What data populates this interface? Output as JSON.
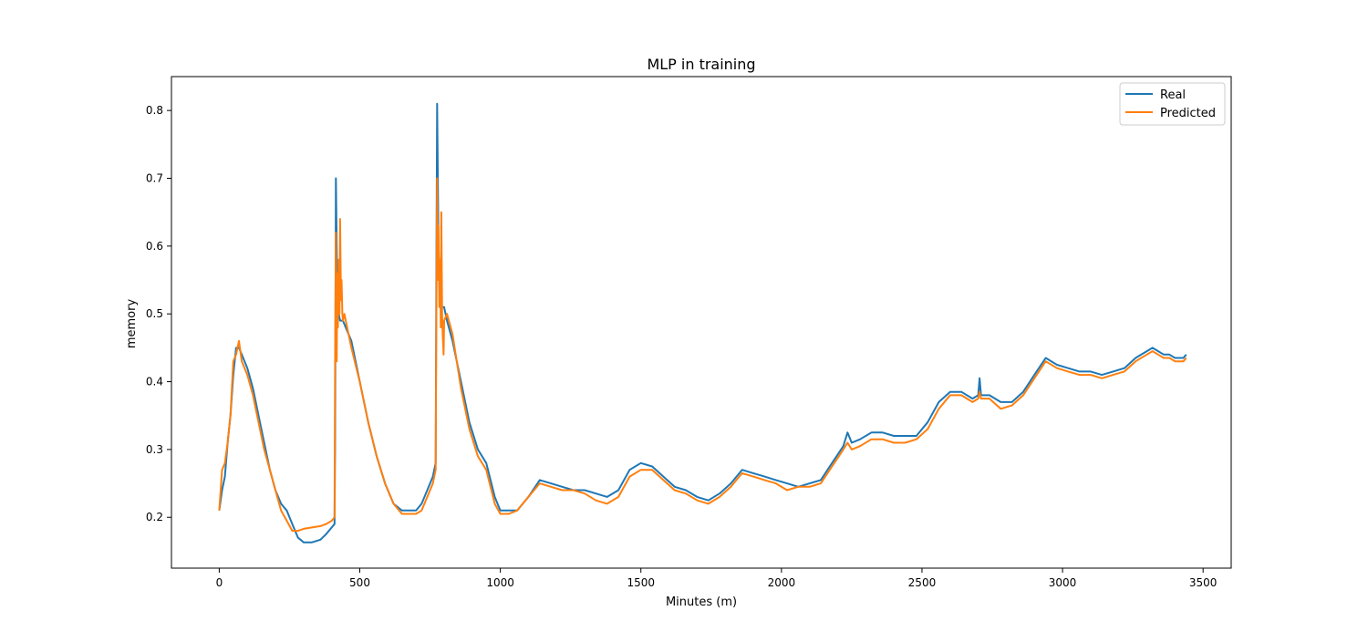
{
  "chart_data": {
    "type": "line",
    "title": "MLP in training",
    "xlabel": "Minutes (m)",
    "ylabel": "memory",
    "xlim": [
      -170,
      3600
    ],
    "ylim": [
      0.125,
      0.85
    ],
    "xticks": [
      0,
      500,
      1000,
      1500,
      2000,
      2500,
      3000,
      3500
    ],
    "yticks": [
      0.2,
      0.3,
      0.4,
      0.5,
      0.6,
      0.7,
      0.8
    ],
    "xtick_labels": [
      "0",
      "500",
      "1000",
      "1500",
      "2000",
      "2500",
      "3000",
      "3500"
    ],
    "ytick_labels": [
      "0.2",
      "0.3",
      "0.4",
      "0.5",
      "0.6",
      "0.7",
      "0.8"
    ],
    "grid": false,
    "legend": "top-right",
    "series": [
      {
        "name": "Real",
        "color": "#1f77b4",
        "x": [
          0,
          10,
          20,
          30,
          40,
          50,
          60,
          70,
          80,
          100,
          120,
          140,
          160,
          180,
          200,
          220,
          240,
          260,
          280,
          300,
          330,
          360,
          380,
          400,
          410,
          412,
          415,
          420,
          425,
          430,
          440,
          450,
          470,
          500,
          530,
          560,
          590,
          620,
          650,
          680,
          700,
          720,
          740,
          760,
          770,
          772,
          775,
          780,
          785,
          790,
          800,
          810,
          830,
          860,
          890,
          920,
          950,
          980,
          1000,
          1030,
          1060,
          1100,
          1140,
          1180,
          1220,
          1260,
          1300,
          1340,
          1380,
          1420,
          1460,
          1500,
          1540,
          1580,
          1620,
          1660,
          1700,
          1740,
          1780,
          1820,
          1860,
          1900,
          1940,
          1980,
          2020,
          2060,
          2100,
          2140,
          2180,
          2220,
          2235,
          2250,
          2280,
          2320,
          2360,
          2400,
          2440,
          2480,
          2520,
          2560,
          2600,
          2640,
          2680,
          2700,
          2705,
          2710,
          2740,
          2780,
          2820,
          2860,
          2900,
          2940,
          2980,
          3020,
          3060,
          3100,
          3140,
          3180,
          3220,
          3260,
          3300,
          3320,
          3340,
          3360,
          3380,
          3400,
          3430,
          3440
        ],
        "values": [
          0.21,
          0.24,
          0.26,
          0.31,
          0.35,
          0.41,
          0.45,
          0.45,
          0.44,
          0.42,
          0.39,
          0.35,
          0.31,
          0.27,
          0.24,
          0.22,
          0.21,
          0.19,
          0.17,
          0.163,
          0.163,
          0.167,
          0.175,
          0.185,
          0.19,
          0.3,
          0.7,
          0.52,
          0.5,
          0.49,
          0.49,
          0.48,
          0.46,
          0.4,
          0.34,
          0.29,
          0.25,
          0.22,
          0.21,
          0.21,
          0.21,
          0.22,
          0.24,
          0.26,
          0.28,
          0.5,
          0.81,
          0.6,
          0.52,
          0.51,
          0.51,
          0.49,
          0.46,
          0.4,
          0.34,
          0.3,
          0.28,
          0.23,
          0.21,
          0.21,
          0.21,
          0.23,
          0.255,
          0.25,
          0.245,
          0.24,
          0.24,
          0.235,
          0.23,
          0.24,
          0.27,
          0.28,
          0.275,
          0.26,
          0.245,
          0.24,
          0.23,
          0.225,
          0.235,
          0.25,
          0.27,
          0.265,
          0.26,
          0.255,
          0.25,
          0.245,
          0.25,
          0.255,
          0.28,
          0.305,
          0.325,
          0.31,
          0.315,
          0.325,
          0.325,
          0.32,
          0.32,
          0.32,
          0.34,
          0.37,
          0.385,
          0.385,
          0.375,
          0.38,
          0.405,
          0.38,
          0.38,
          0.37,
          0.37,
          0.385,
          0.41,
          0.435,
          0.425,
          0.42,
          0.415,
          0.415,
          0.41,
          0.415,
          0.42,
          0.435,
          0.445,
          0.45,
          0.445,
          0.44,
          0.44,
          0.435,
          0.435,
          0.44
        ]
      },
      {
        "name": "Predicted",
        "color": "#ff7f0e",
        "x": [
          0,
          10,
          20,
          30,
          40,
          50,
          60,
          70,
          80,
          100,
          120,
          140,
          160,
          180,
          200,
          220,
          240,
          260,
          280,
          300,
          330,
          360,
          380,
          400,
          410,
          412,
          415,
          418,
          420,
          422,
          425,
          428,
          430,
          433,
          435,
          438,
          440,
          445,
          450,
          470,
          500,
          530,
          560,
          590,
          620,
          650,
          680,
          700,
          720,
          740,
          760,
          770,
          772,
          775,
          778,
          780,
          783,
          785,
          788,
          790,
          793,
          795,
          798,
          800,
          810,
          830,
          860,
          890,
          920,
          950,
          980,
          1000,
          1030,
          1060,
          1100,
          1140,
          1180,
          1220,
          1260,
          1300,
          1340,
          1380,
          1420,
          1460,
          1500,
          1540,
          1580,
          1620,
          1660,
          1700,
          1740,
          1780,
          1820,
          1860,
          1900,
          1940,
          1980,
          2020,
          2060,
          2100,
          2140,
          2180,
          2220,
          2235,
          2250,
          2280,
          2320,
          2360,
          2400,
          2440,
          2480,
          2520,
          2560,
          2600,
          2640,
          2680,
          2700,
          2705,
          2710,
          2740,
          2780,
          2820,
          2860,
          2900,
          2940,
          2980,
          3020,
          3060,
          3100,
          3140,
          3180,
          3220,
          3260,
          3300,
          3320,
          3340,
          3360,
          3380,
          3400,
          3430,
          3440
        ],
        "values": [
          0.21,
          0.27,
          0.28,
          0.31,
          0.35,
          0.43,
          0.44,
          0.46,
          0.43,
          0.41,
          0.38,
          0.34,
          0.3,
          0.27,
          0.24,
          0.21,
          0.195,
          0.18,
          0.18,
          0.183,
          0.185,
          0.187,
          0.19,
          0.195,
          0.2,
          0.42,
          0.62,
          0.43,
          0.56,
          0.48,
          0.58,
          0.5,
          0.64,
          0.52,
          0.55,
          0.5,
          0.49,
          0.5,
          0.49,
          0.45,
          0.4,
          0.34,
          0.29,
          0.25,
          0.22,
          0.205,
          0.205,
          0.205,
          0.21,
          0.23,
          0.25,
          0.27,
          0.45,
          0.7,
          0.55,
          0.63,
          0.51,
          0.58,
          0.48,
          0.65,
          0.5,
          0.47,
          0.44,
          0.49,
          0.5,
          0.47,
          0.39,
          0.33,
          0.29,
          0.27,
          0.22,
          0.205,
          0.205,
          0.21,
          0.23,
          0.25,
          0.245,
          0.24,
          0.24,
          0.235,
          0.225,
          0.22,
          0.23,
          0.26,
          0.27,
          0.27,
          0.255,
          0.24,
          0.235,
          0.225,
          0.22,
          0.23,
          0.245,
          0.265,
          0.26,
          0.255,
          0.25,
          0.24,
          0.245,
          0.245,
          0.25,
          0.275,
          0.3,
          0.31,
          0.3,
          0.305,
          0.315,
          0.315,
          0.31,
          0.31,
          0.315,
          0.33,
          0.36,
          0.38,
          0.38,
          0.37,
          0.375,
          0.385,
          0.375,
          0.375,
          0.36,
          0.365,
          0.38,
          0.405,
          0.43,
          0.42,
          0.415,
          0.41,
          0.41,
          0.405,
          0.41,
          0.415,
          0.43,
          0.44,
          0.445,
          0.44,
          0.435,
          0.435,
          0.43,
          0.43,
          0.435
        ]
      }
    ]
  }
}
